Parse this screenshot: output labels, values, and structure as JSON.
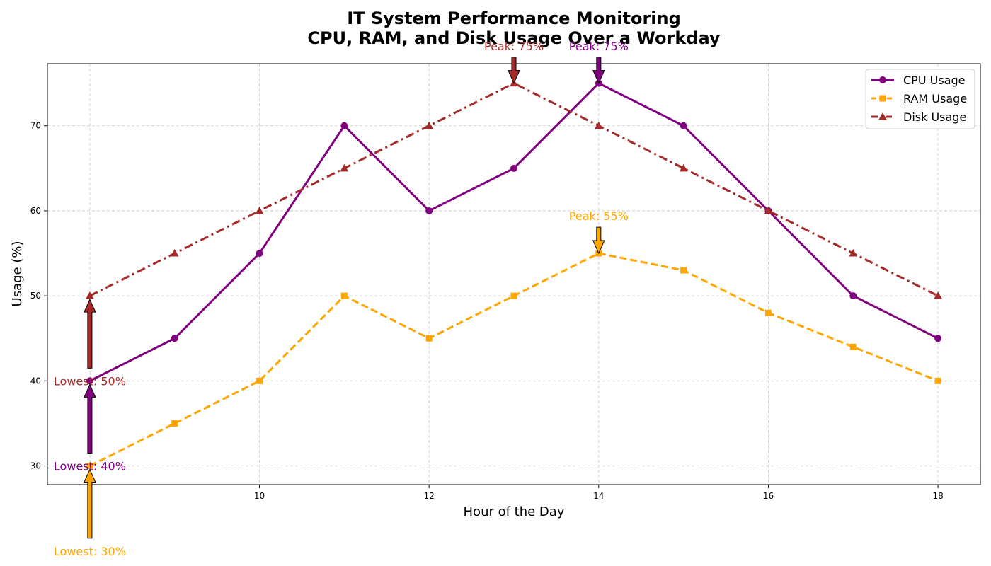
{
  "chart_data": {
    "type": "line",
    "title_lines": [
      "IT System Performance Monitoring",
      "CPU, RAM, and Disk Usage Over a Workday"
    ],
    "xlabel": "Hour of the Day",
    "ylabel": "Usage (%)",
    "x": [
      8,
      9,
      10,
      11,
      12,
      13,
      14,
      15,
      16,
      17,
      18
    ],
    "xticks": [
      8,
      10,
      12,
      14,
      16,
      18
    ],
    "xtick_labels": [
      "8",
      "10",
      "12",
      "14",
      "16",
      "18"
    ],
    "yticks": [
      30,
      40,
      50,
      60,
      70
    ],
    "xlim": [
      7.5,
      18.5
    ],
    "ylim": [
      27.8,
      77.3
    ],
    "grid": true,
    "legend_position": "top-right",
    "series": [
      {
        "name": "CPU Usage",
        "values": [
          40,
          45,
          55,
          70,
          60,
          65,
          75,
          70,
          60,
          50,
          45
        ],
        "color": "#800080",
        "marker": "circle",
        "linestyle": "solid"
      },
      {
        "name": "RAM Usage",
        "values": [
          30,
          35,
          40,
          50,
          45,
          50,
          55,
          53,
          48,
          44,
          40
        ],
        "color": "#FFA500",
        "marker": "square",
        "linestyle": "dashed"
      },
      {
        "name": "Disk Usage",
        "values": [
          50,
          55,
          60,
          65,
          70,
          75,
          70,
          65,
          60,
          55,
          50
        ],
        "color": "#A52A2A",
        "marker": "triangle",
        "linestyle": "dashdot"
      }
    ],
    "annotations": [
      {
        "text": "Peak: 75%",
        "series": "Disk Usage",
        "x": 13,
        "y": 75,
        "direction": "down",
        "text_y": 79.4,
        "color": "#A52A2A"
      },
      {
        "text": "Peak: 75%",
        "series": "CPU Usage",
        "x": 14,
        "y": 75,
        "direction": "down",
        "text_y": 79.4,
        "color": "#800080"
      },
      {
        "text": "Peak: 55%",
        "series": "RAM Usage",
        "x": 14,
        "y": 55,
        "direction": "down",
        "text_y": 59.4,
        "color": "#FFA500"
      },
      {
        "text": "Lowest: 50%",
        "series": "Disk Usage",
        "x": 8,
        "y": 50,
        "direction": "up",
        "text_y": 40,
        "color": "#A52A2A"
      },
      {
        "text": "Lowest: 40%",
        "series": "CPU Usage",
        "x": 8,
        "y": 40,
        "direction": "up",
        "text_y": 30,
        "color": "#800080"
      },
      {
        "text": "Lowest: 30%",
        "series": "RAM Usage",
        "x": 8,
        "y": 30,
        "direction": "up",
        "text_y": 20,
        "color": "#FFA500"
      }
    ]
  }
}
